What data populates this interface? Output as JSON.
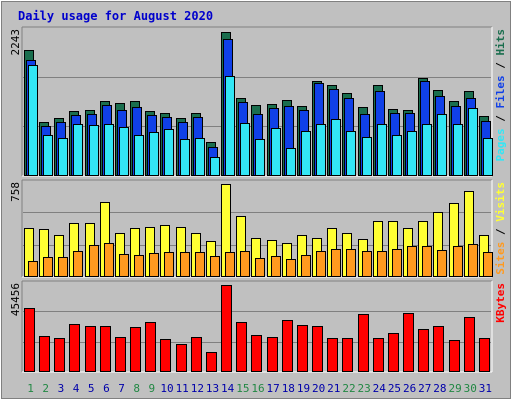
{
  "title": "Daily usage for August 2020",
  "colors": {
    "background": "#c0c0c0",
    "title": "#0000cc",
    "hits": "#1a6e4e",
    "files": "#1040e8",
    "pages": "#33e6f5",
    "visits": "#ffff33",
    "sites": "#ff9a1f",
    "kbytes": "#ff0000",
    "weekend_day": "#228844",
    "weekday_day": "#0000aa"
  },
  "chart_data": [
    {
      "type": "bar",
      "name": "hits-files-pages",
      "ymax_label": "2243",
      "ylim": [
        0,
        2243
      ],
      "grid": true,
      "legend": {
        "parts": [
          "Pages",
          "Files",
          "Hits"
        ],
        "separator": " / "
      },
      "categories": [
        "1",
        "2",
        "3",
        "4",
        "5",
        "6",
        "7",
        "8",
        "9",
        "10",
        "11",
        "12",
        "13",
        "14",
        "15",
        "16",
        "17",
        "18",
        "19",
        "20",
        "21",
        "22",
        "23",
        "24",
        "25",
        "26",
        "27",
        "28",
        "29",
        "30",
        "31"
      ],
      "series": [
        {
          "name": "Hits",
          "values": [
            1950,
            830,
            890,
            1010,
            1020,
            1160,
            1130,
            1160,
            1000,
            980,
            890,
            980,
            530,
            2220,
            1210,
            1100,
            1110,
            1170,
            1090,
            1470,
            1400,
            1290,
            1060,
            1410,
            1030,
            1020,
            1520,
            1330,
            1160,
            1310,
            930
          ]
        },
        {
          "name": "Files",
          "values": [
            1800,
            780,
            830,
            950,
            960,
            1100,
            1020,
            1060,
            950,
            920,
            830,
            920,
            450,
            2120,
            1150,
            960,
            1050,
            1080,
            1020,
            1440,
            1350,
            1210,
            960,
            1320,
            970,
            970,
            1470,
            1230,
            1090,
            1200,
            850
          ]
        },
        {
          "name": "Pages",
          "values": [
            1720,
            630,
            590,
            810,
            790,
            800,
            760,
            640,
            680,
            720,
            580,
            590,
            300,
            1550,
            820,
            570,
            750,
            430,
            700,
            800,
            880,
            700,
            610,
            800,
            640,
            700,
            800,
            960,
            810,
            1050,
            590
          ]
        }
      ]
    },
    {
      "type": "bar",
      "name": "visits-sites",
      "ymax_label": "758",
      "ylim": [
        0,
        758
      ],
      "grid": true,
      "legend": {
        "parts": [
          "Sites",
          "Visits"
        ],
        "separator": " / "
      },
      "categories": [
        "1",
        "2",
        "3",
        "4",
        "5",
        "6",
        "7",
        "8",
        "9",
        "10",
        "11",
        "12",
        "13",
        "14",
        "15",
        "16",
        "17",
        "18",
        "19",
        "20",
        "21",
        "22",
        "23",
        "24",
        "25",
        "26",
        "27",
        "28",
        "29",
        "30",
        "31"
      ],
      "series": [
        {
          "name": "Visits",
          "values": [
            400,
            390,
            340,
            440,
            440,
            610,
            360,
            400,
            410,
            420,
            410,
            360,
            290,
            758,
            500,
            320,
            300,
            280,
            340,
            320,
            400,
            360,
            310,
            460,
            460,
            400,
            460,
            530,
            600,
            700,
            340
          ]
        },
        {
          "name": "Sites",
          "values": [
            130,
            160,
            165,
            210,
            260,
            280,
            190,
            180,
            195,
            200,
            205,
            200,
            170,
            200,
            210,
            155,
            170,
            145,
            180,
            210,
            230,
            225,
            215,
            215,
            225,
            250,
            250,
            220,
            250,
            265,
            200
          ]
        }
      ]
    },
    {
      "type": "bar",
      "name": "kbytes",
      "ymax_label": "45456",
      "ylim": [
        0,
        45456
      ],
      "grid": true,
      "legend": {
        "parts": [
          "KBytes"
        ],
        "separator": ""
      },
      "categories": [
        "1",
        "2",
        "3",
        "4",
        "5",
        "6",
        "7",
        "8",
        "9",
        "10",
        "11",
        "12",
        "13",
        "14",
        "15",
        "16",
        "17",
        "18",
        "19",
        "20",
        "21",
        "22",
        "23",
        "24",
        "25",
        "26",
        "27",
        "28",
        "29",
        "30",
        "31"
      ],
      "series": [
        {
          "name": "KBytes",
          "values": [
            33700,
            18800,
            18000,
            25300,
            24000,
            23800,
            18400,
            23700,
            26300,
            17500,
            14700,
            18500,
            10300,
            45456,
            26200,
            19100,
            18500,
            27000,
            24300,
            24000,
            17600,
            17700,
            30200,
            17800,
            20300,
            31000,
            22300,
            24200,
            16600,
            28800,
            17600
          ]
        }
      ]
    }
  ],
  "day_labels": [
    "1",
    "2",
    "3",
    "4",
    "5",
    "6",
    "7",
    "8",
    "9",
    "10",
    "11",
    "12",
    "13",
    "14",
    "15",
    "16",
    "17",
    "18",
    "19",
    "20",
    "21",
    "22",
    "23",
    "24",
    "25",
    "26",
    "27",
    "28",
    "29",
    "30",
    "31"
  ],
  "weekend_days": [
    "1",
    "2",
    "8",
    "9",
    "15",
    "16",
    "22",
    "23",
    "29",
    "30"
  ]
}
